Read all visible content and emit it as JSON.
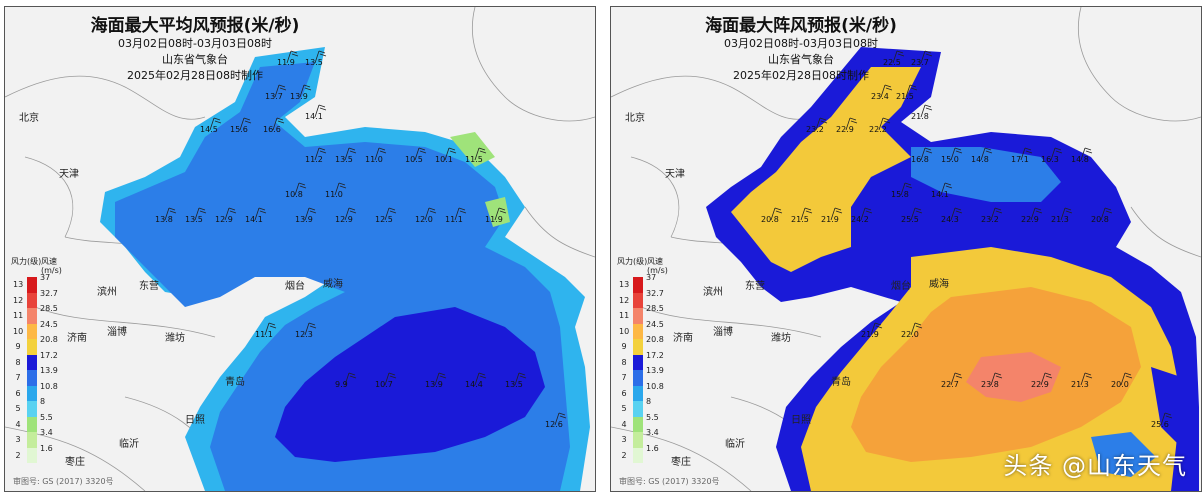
{
  "panels": [
    {
      "title": "海面最大平均风预报(米/秒)",
      "time_range": "03月02日08时-03月03日08时",
      "issuer": "山东省气象台",
      "issued": "2025年02月28日08时制作",
      "approval": "审图号: GS (2017) 3320号"
    },
    {
      "title": "海面最大阵风预报(米/秒)",
      "time_range": "03月02日08时-03月03日08时",
      "issuer": "山东省气象台",
      "issued": "2025年02月28日08时制作",
      "approval": "审图号: GS (2017) 3320号"
    }
  ],
  "cities": [
    "北京",
    "天津",
    "滨州",
    "东营",
    "济南",
    "淄博",
    "潍坊",
    "烟台",
    "威海",
    "青岛",
    "日照",
    "临沂",
    "枣庄"
  ],
  "legend": {
    "level_header": "风力(级)",
    "speed_header": "风速(m/s)",
    "levels": [
      "13",
      "12",
      "11",
      "10",
      "9",
      "8",
      "7",
      "6",
      "5",
      "4",
      "3",
      "2"
    ],
    "speeds": [
      "37",
      "32.7",
      "28.5",
      "24.5",
      "20.8",
      "17.2",
      "13.9",
      "10.8",
      "8",
      "5.5",
      "3.4",
      "1.6"
    ],
    "colors": [
      "#d7191c",
      "#e8433a",
      "#f4846a",
      "#fdb845",
      "#f3d13d",
      "#1a1ad8",
      "#2c6ee8",
      "#2aa7ec",
      "#59d2f1",
      "#9fe37a",
      "#c4ed9c",
      "#e1f7d3"
    ]
  },
  "colors": {
    "land": "#f2f2f2",
    "sea_level6": "#2c7ee8",
    "sea_level7": "#1a1ad8",
    "sea_level5": "#2fb4ee",
    "gust_level9": "#f3c93a",
    "gust_level10": "#f5a23a",
    "gust_level11": "#f4846a"
  },
  "mean_wind_values": [
    "11.9",
    "13.5",
    "13.7",
    "13.9",
    "14.1",
    "14.5",
    "15.6",
    "16.6",
    "11.2",
    "13.5",
    "11.0",
    "10.5",
    "10.1",
    "11.5",
    "10.8",
    "11.0",
    "13.8",
    "13.5",
    "12.9",
    "14.1",
    "13.9",
    "12.9",
    "12.5",
    "12.0",
    "11.1",
    "11.9",
    "11.1",
    "12.3",
    "9.9",
    "10.7",
    "13.9",
    "14.4",
    "13.5",
    "12.6"
  ],
  "gust_values": [
    "22.5",
    "23.7",
    "23.4",
    "21.5",
    "21.8",
    "23.2",
    "22.9",
    "22.2",
    "16.8",
    "15.0",
    "14.8",
    "17.1",
    "16.3",
    "14.8",
    "15.8",
    "14.1",
    "20.8",
    "21.5",
    "21.9",
    "24.2",
    "25.5",
    "24.3",
    "23.2",
    "22.9",
    "21.3",
    "20.8",
    "21.9",
    "22.0",
    "22.7",
    "23.8",
    "22.9",
    "21.3",
    "20.0",
    "25.6"
  ],
  "watermark": "头条 @山东天气"
}
